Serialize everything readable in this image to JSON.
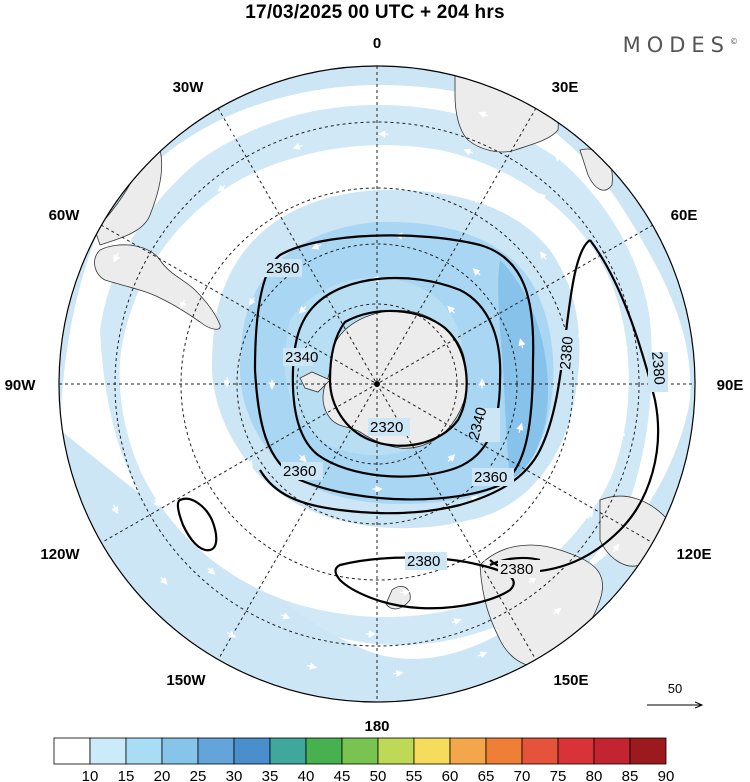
{
  "header": {
    "title": "17/03/2025  00 UTC  + 204 hrs",
    "brand": "MODES",
    "brand_mark": "©"
  },
  "map": {
    "projection": "polar-stereographic-south",
    "longitude_labels": [
      "0",
      "30E",
      "60E",
      "90E",
      "120E",
      "150E",
      "180",
      "150W",
      "120W",
      "90W",
      "60W",
      "30W"
    ],
    "contour_labels": [
      "2360",
      "2340",
      "2320",
      "2340",
      "2360",
      "2380",
      "2380",
      "2380",
      "2380",
      "2380"
    ],
    "wind_reference": {
      "value": "50"
    },
    "colors": {
      "shade_light": "#cce6f6",
      "shade_mid": "#a9d6f2",
      "shade_strong": "#86c2ea",
      "land": "#ececec",
      "contour": "#000000"
    }
  },
  "colorbar": {
    "ticks": [
      "10",
      "15",
      "20",
      "25",
      "30",
      "35",
      "40",
      "45",
      "50",
      "55",
      "60",
      "65",
      "70",
      "75",
      "80",
      "85",
      "90"
    ],
    "colors": [
      "#ffffff",
      "#cbebfb",
      "#a9dcf5",
      "#86c4ea",
      "#63a5db",
      "#4a8fcc",
      "#3fa79b",
      "#47b14f",
      "#79c351",
      "#bed955",
      "#f5dc5d",
      "#f3a64a",
      "#ef7e37",
      "#e5543a",
      "#d83336",
      "#c22432",
      "#9c1a1e"
    ]
  }
}
